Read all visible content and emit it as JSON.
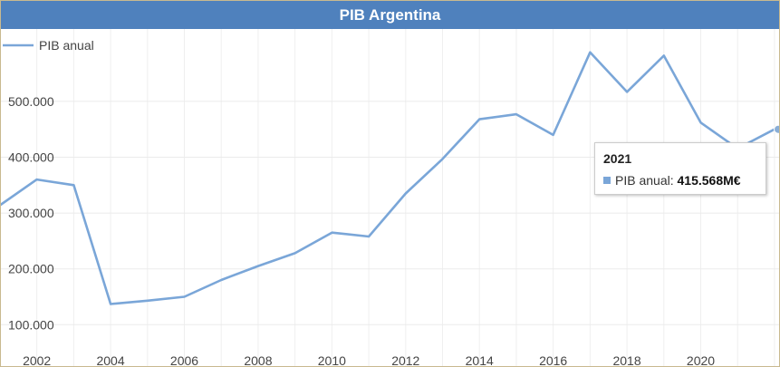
{
  "chart_data": {
    "type": "line",
    "title": "PIB Argentina",
    "x": [
      2001,
      2002,
      2003,
      2004,
      2005,
      2006,
      2007,
      2008,
      2009,
      2010,
      2011,
      2012,
      2013,
      2014,
      2015,
      2016,
      2017,
      2018,
      2019,
      2020,
      2021,
      2022
    ],
    "series": [
      {
        "name": "PIB anual",
        "values": [
          314000,
          360000,
          350000,
          137000,
          143000,
          150000,
          180000,
          205000,
          228000,
          265000,
          258000,
          335000,
          397000,
          468000,
          477000,
          440000,
          588000,
          517000,
          582000,
          462000,
          415568,
          450000
        ]
      }
    ],
    "xticks": [
      2002,
      2004,
      2006,
      2008,
      2010,
      2012,
      2014,
      2016,
      2018,
      2020
    ],
    "yticks": [
      100000,
      200000,
      300000,
      400000,
      500000
    ],
    "ytick_labels": [
      "100.000",
      "200.000",
      "300.000",
      "400.000",
      "500.000"
    ],
    "xlim": [
      2001.1,
      2022.1
    ],
    "ylim": [
      55000,
      620000
    ],
    "grid": true,
    "legend_position": "top-left",
    "line_color": "#7aa6d8"
  },
  "tooltip": {
    "year": "2021",
    "series_label": "PIB anual:",
    "value": "415.568M€"
  }
}
